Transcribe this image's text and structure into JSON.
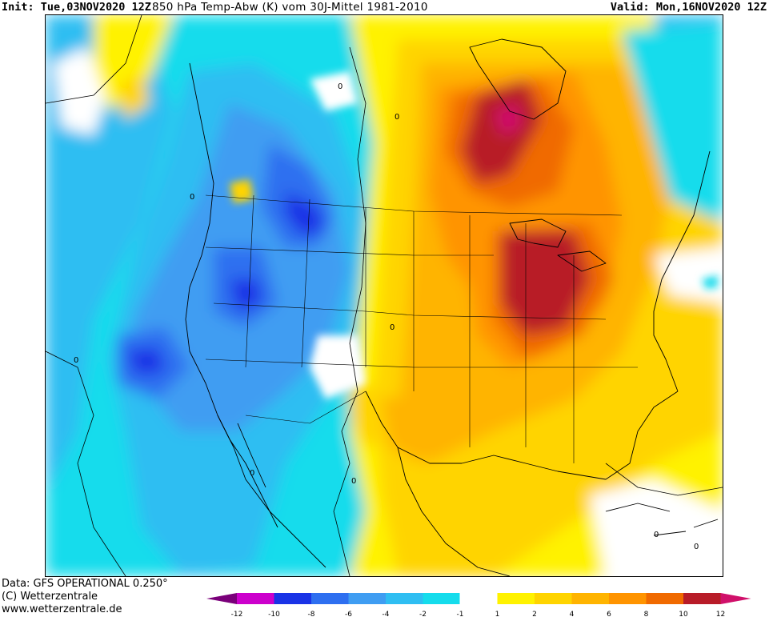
{
  "header": {
    "init": "Init: Tue,03NOV2020 12Z",
    "title": "850 hPa Temp-Abw (K) vom 30J-Mittel 1981-2010",
    "valid": "Valid: Mon,16NOV2020 12Z"
  },
  "footer": {
    "data_source": "Data: GFS OPERATIONAL 0.250°",
    "copyright": "(C) Wetterzentrale",
    "website": "www.wetterzentrale.de"
  },
  "colorbar": {
    "ticks": [
      "-12",
      "-10",
      "-8",
      "-6",
      "-4",
      "-2",
      "-1",
      "1",
      "2",
      "4",
      "6",
      "8",
      "10",
      "12"
    ],
    "colors": [
      "#cc00cc",
      "#1a33e6",
      "#2e6ff0",
      "#3f9df2",
      "#2fbef2",
      "#15dcec",
      "#ffffff",
      "#fff200",
      "#ffd400",
      "#ffb400",
      "#ff9400",
      "#f06a00",
      "#b81c28"
    ],
    "low_arrow_color": "#7a007a",
    "high_arrow_color": "#d0106a"
  },
  "map_colors": {
    "m12": "#cc00cc",
    "m10": "#1a33e6",
    "m8": "#2e6ff0",
    "m6": "#3f9df2",
    "m4": "#2fbef2",
    "m2": "#15dcec",
    "zero": "#ffffff",
    "p1": "#fff200",
    "p2": "#ffd400",
    "p4": "#ffb400",
    "p6": "#ff9400",
    "p8": "#f06a00",
    "p10": "#b81c28",
    "p12": "#d0106a"
  },
  "contour_labels": [
    "0",
    "0",
    "0",
    "0",
    "0",
    "0",
    "0",
    "0",
    "0"
  ]
}
